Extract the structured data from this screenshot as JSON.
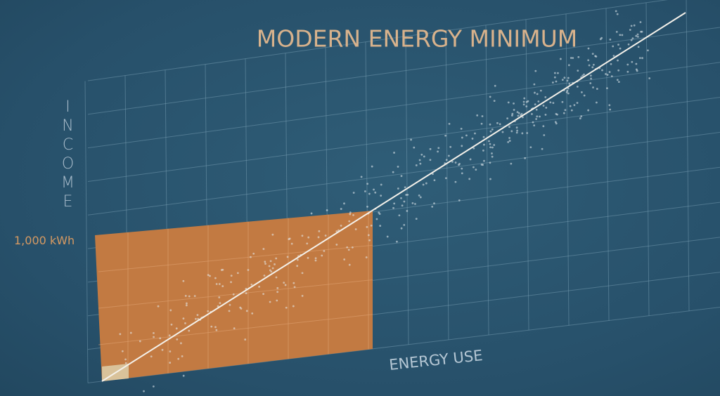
{
  "title": "MODERN ENERGY MINIMUM",
  "x_axis_label": "ENERGY USE",
  "y_axis_label": "INCOME",
  "threshold_label": "1,000 kWh"
}
